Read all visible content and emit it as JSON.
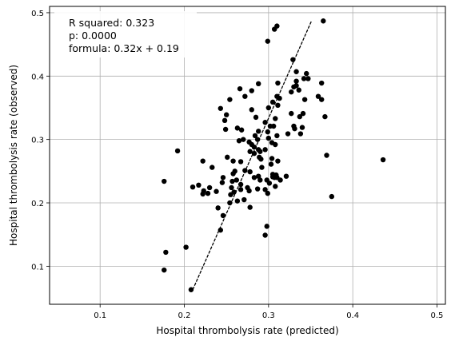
{
  "chart_data": {
    "type": "scatter",
    "xlabel": "Hospital thrombolysis rate (predicted)",
    "ylabel": "Hospital thrombolysis rate (observed)",
    "xlim": [
      0.04,
      0.51
    ],
    "ylim": [
      0.04,
      0.51
    ],
    "x_ticks": [
      0.1,
      0.2,
      0.3,
      0.4,
      0.5
    ],
    "y_ticks": [
      0.1,
      0.2,
      0.3,
      0.4,
      0.5
    ],
    "x_tick_labels": [
      "0.1",
      "0.2",
      "0.3",
      "0.4",
      "0.5"
    ],
    "y_tick_labels": [
      "0.1",
      "0.2",
      "0.3",
      "0.4",
      "0.5"
    ],
    "grid": true,
    "point_color": "#000000",
    "fit_line_color": "#000000",
    "annotation": {
      "placement": "top-left",
      "lines": [
        "R squared: 0.323",
        "p: 0.0000",
        "formula: 0.32x + 0.19"
      ]
    },
    "fit_line": {
      "style": "dashed",
      "points": [
        [
          0.21,
          0.063
        ],
        [
          0.351,
          0.487
        ]
      ]
    },
    "points": [
      [
        0.365,
        0.487
      ],
      [
        0.31,
        0.479
      ],
      [
        0.307,
        0.474
      ],
      [
        0.299,
        0.455
      ],
      [
        0.329,
        0.426
      ],
      [
        0.333,
        0.407
      ],
      [
        0.345,
        0.404
      ],
      [
        0.347,
        0.396
      ],
      [
        0.342,
        0.396
      ],
      [
        0.333,
        0.392
      ],
      [
        0.363,
        0.389
      ],
      [
        0.311,
        0.389
      ],
      [
        0.288,
        0.388
      ],
      [
        0.333,
        0.385
      ],
      [
        0.33,
        0.383
      ],
      [
        0.266,
        0.38
      ],
      [
        0.336,
        0.378
      ],
      [
        0.28,
        0.377
      ],
      [
        0.327,
        0.375
      ],
      [
        0.359,
        0.368
      ],
      [
        0.31,
        0.368
      ],
      [
        0.313,
        0.365
      ],
      [
        0.272,
        0.368
      ],
      [
        0.363,
        0.363
      ],
      [
        0.343,
        0.363
      ],
      [
        0.254,
        0.363
      ],
      [
        0.305,
        0.359
      ],
      [
        0.311,
        0.354
      ],
      [
        0.243,
        0.349
      ],
      [
        0.3,
        0.35
      ],
      [
        0.28,
        0.347
      ],
      [
        0.341,
        0.341
      ],
      [
        0.327,
        0.341
      ],
      [
        0.337,
        0.336
      ],
      [
        0.285,
        0.335
      ],
      [
        0.367,
        0.336
      ],
      [
        0.25,
        0.339
      ],
      [
        0.308,
        0.333
      ],
      [
        0.248,
        0.33
      ],
      [
        0.296,
        0.327
      ],
      [
        0.306,
        0.321
      ],
      [
        0.33,
        0.321
      ],
      [
        0.34,
        0.319
      ],
      [
        0.302,
        0.321
      ],
      [
        0.331,
        0.317
      ],
      [
        0.263,
        0.318
      ],
      [
        0.249,
        0.316
      ],
      [
        0.268,
        0.315
      ],
      [
        0.299,
        0.312
      ],
      [
        0.288,
        0.313
      ],
      [
        0.338,
        0.309
      ],
      [
        0.323,
        0.309
      ],
      [
        0.284,
        0.306
      ],
      [
        0.31,
        0.306
      ],
      [
        0.3,
        0.302
      ],
      [
        0.287,
        0.3
      ],
      [
        0.27,
        0.3
      ],
      [
        0.265,
        0.298
      ],
      [
        0.277,
        0.296
      ],
      [
        0.304,
        0.295
      ],
      [
        0.308,
        0.292
      ],
      [
        0.28,
        0.292
      ],
      [
        0.283,
        0.288
      ],
      [
        0.288,
        0.284
      ],
      [
        0.296,
        0.284
      ],
      [
        0.29,
        0.281
      ],
      [
        0.278,
        0.281
      ],
      [
        0.192,
        0.282
      ],
      [
        0.283,
        0.278
      ],
      [
        0.369,
        0.275
      ],
      [
        0.289,
        0.272
      ],
      [
        0.251,
        0.272
      ],
      [
        0.291,
        0.269
      ],
      [
        0.304,
        0.27
      ],
      [
        0.311,
        0.266
      ],
      [
        0.222,
        0.266
      ],
      [
        0.258,
        0.266
      ],
      [
        0.267,
        0.265
      ],
      [
        0.436,
        0.268
      ],
      [
        0.303,
        0.261
      ],
      [
        0.292,
        0.256
      ],
      [
        0.233,
        0.256
      ],
      [
        0.272,
        0.251
      ],
      [
        0.278,
        0.249
      ],
      [
        0.26,
        0.25
      ],
      [
        0.258,
        0.246
      ],
      [
        0.305,
        0.245
      ],
      [
        0.309,
        0.244
      ],
      [
        0.305,
        0.241
      ],
      [
        0.31,
        0.24
      ],
      [
        0.307,
        0.24
      ],
      [
        0.321,
        0.242
      ],
      [
        0.288,
        0.242
      ],
      [
        0.283,
        0.24
      ],
      [
        0.246,
        0.24
      ],
      [
        0.298,
        0.236
      ],
      [
        0.314,
        0.236
      ],
      [
        0.301,
        0.231
      ],
      [
        0.29,
        0.236
      ],
      [
        0.245,
        0.232
      ],
      [
        0.262,
        0.236
      ],
      [
        0.257,
        0.234
      ],
      [
        0.176,
        0.234
      ],
      [
        0.267,
        0.229
      ],
      [
        0.217,
        0.228
      ],
      [
        0.308,
        0.226
      ],
      [
        0.21,
        0.225
      ],
      [
        0.275,
        0.224
      ],
      [
        0.23,
        0.224
      ],
      [
        0.256,
        0.224
      ],
      [
        0.287,
        0.222
      ],
      [
        0.267,
        0.221
      ],
      [
        0.223,
        0.219
      ],
      [
        0.277,
        0.219
      ],
      [
        0.296,
        0.221
      ],
      [
        0.259,
        0.217
      ],
      [
        0.238,
        0.218
      ],
      [
        0.222,
        0.214
      ],
      [
        0.228,
        0.215
      ],
      [
        0.255,
        0.213
      ],
      [
        0.299,
        0.215
      ],
      [
        0.375,
        0.21
      ],
      [
        0.271,
        0.205
      ],
      [
        0.263,
        0.203
      ],
      [
        0.254,
        0.2
      ],
      [
        0.278,
        0.193
      ],
      [
        0.24,
        0.192
      ],
      [
        0.246,
        0.18
      ],
      [
        0.298,
        0.163
      ],
      [
        0.243,
        0.157
      ],
      [
        0.296,
        0.149
      ],
      [
        0.202,
        0.13
      ],
      [
        0.178,
        0.122
      ],
      [
        0.176,
        0.094
      ],
      [
        0.208,
        0.063
      ]
    ]
  }
}
